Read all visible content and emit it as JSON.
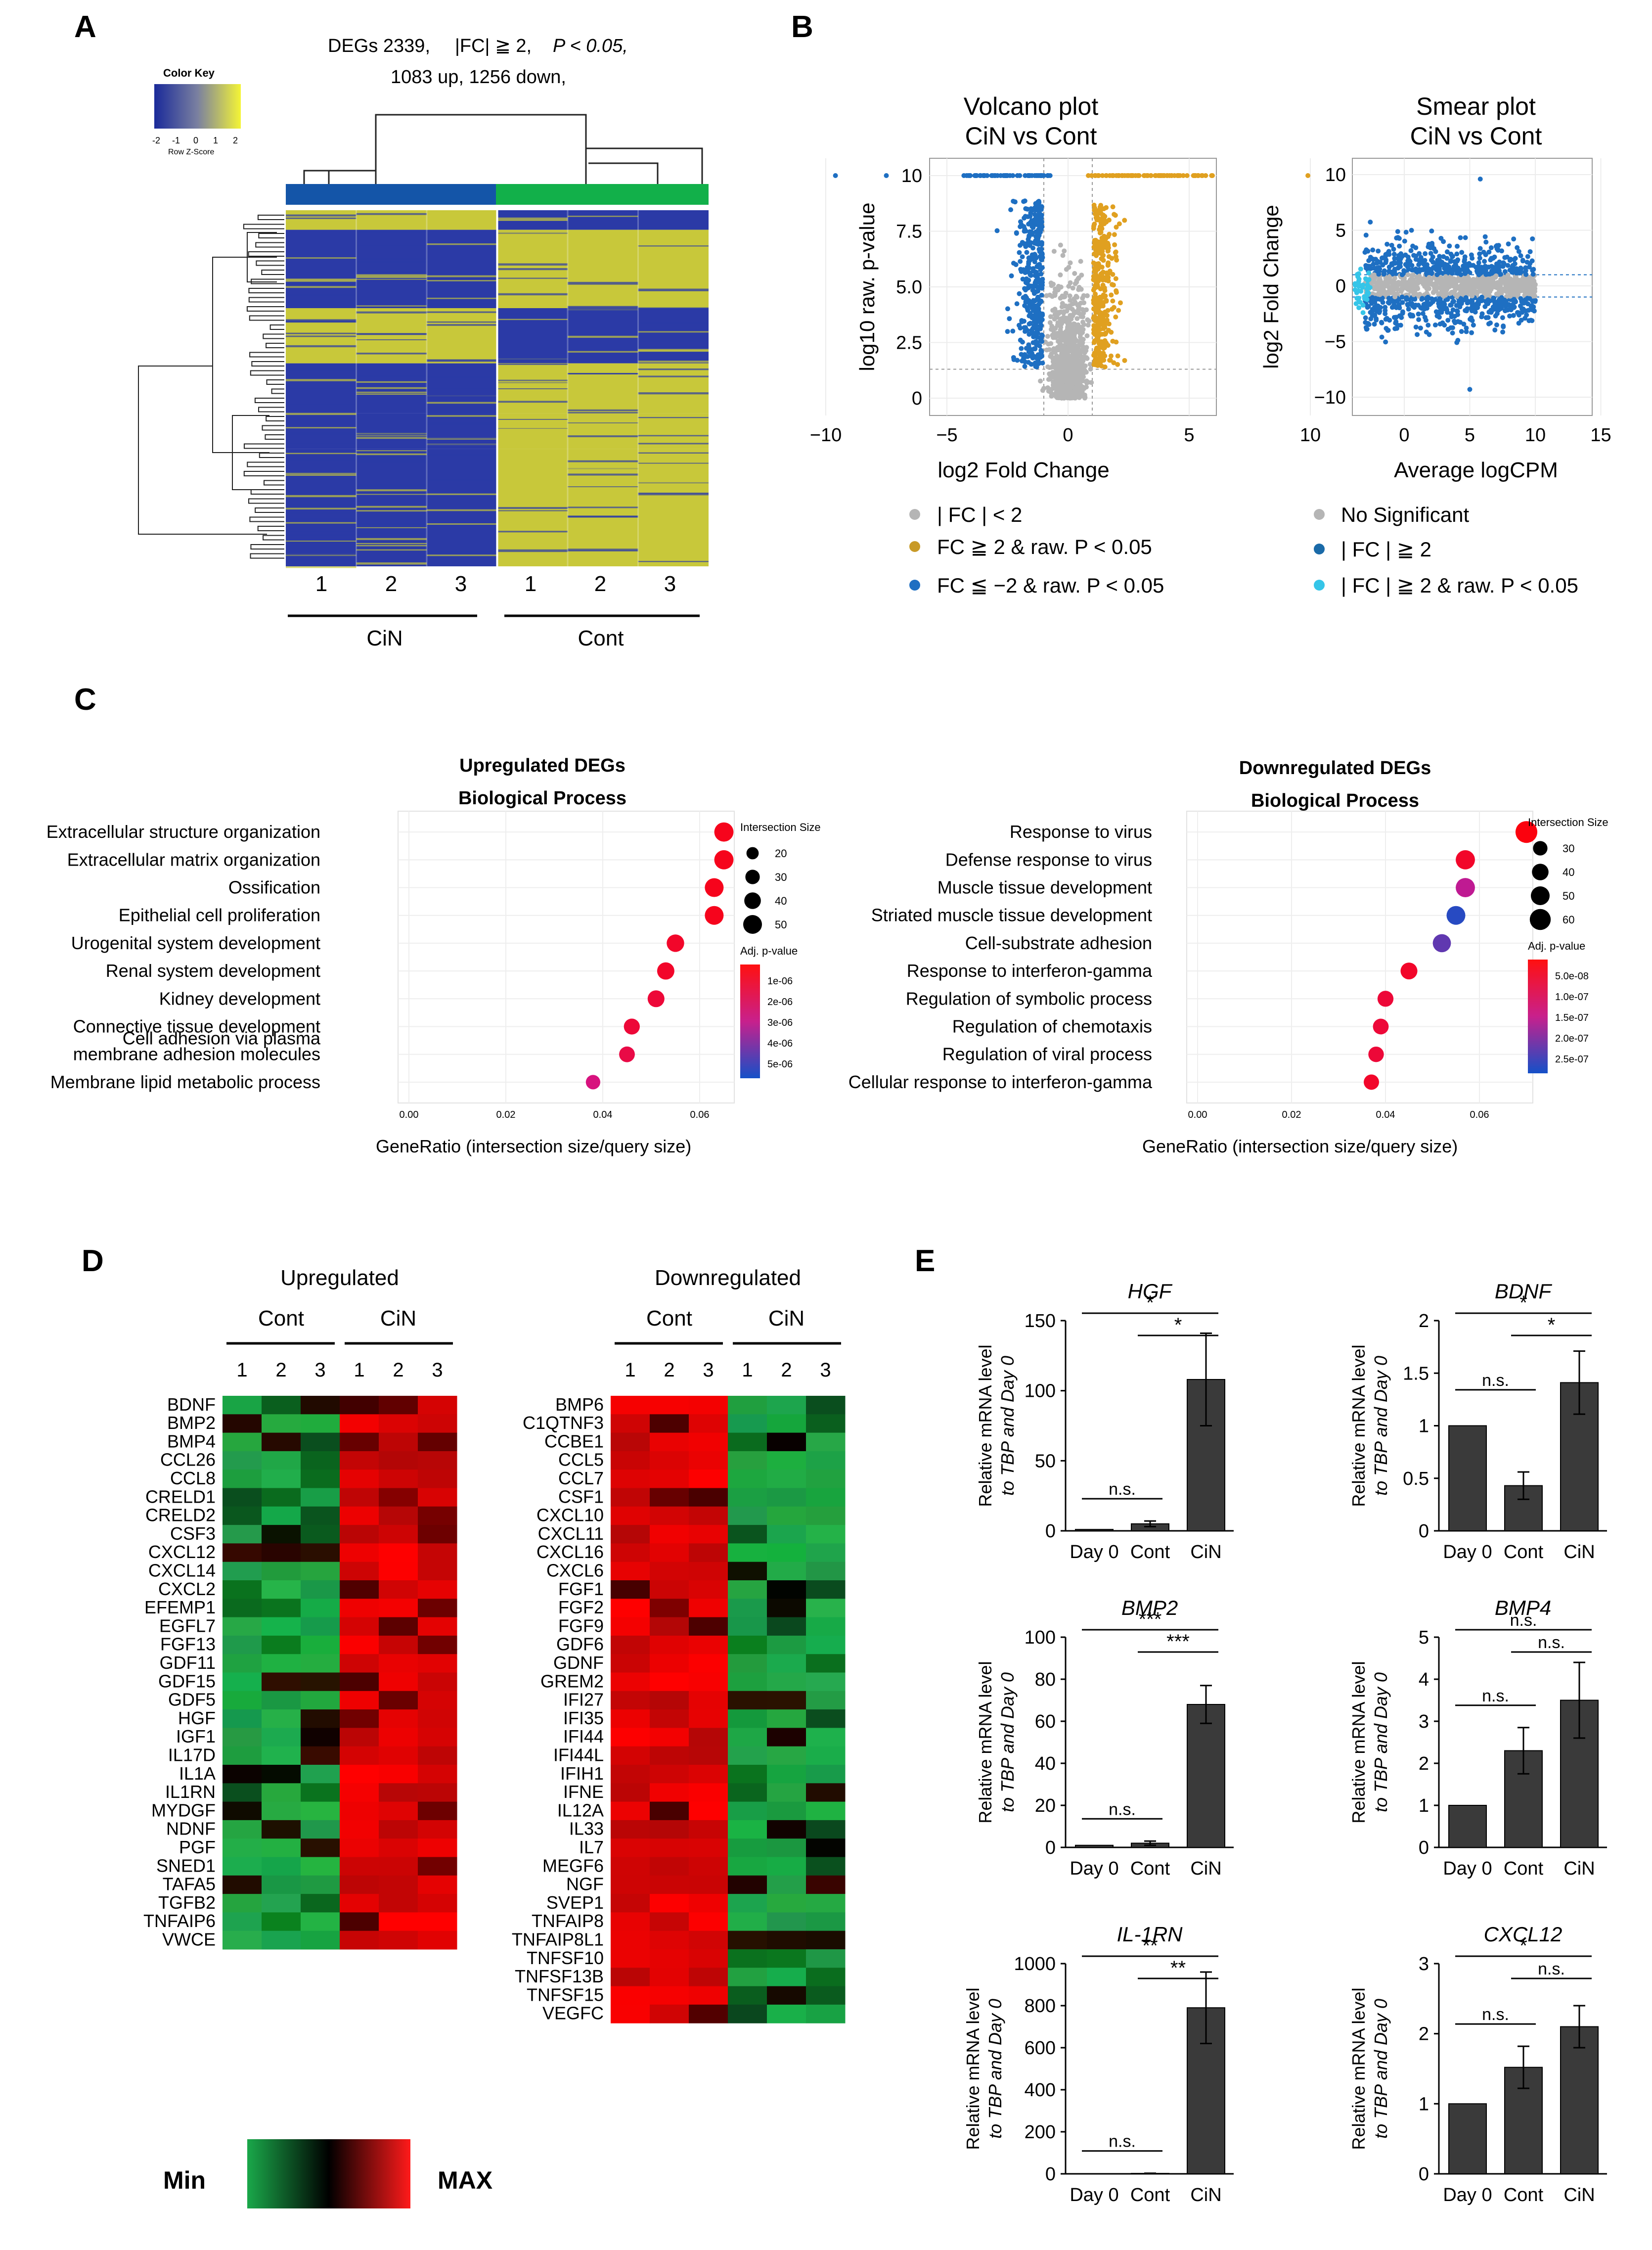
{
  "colors": {
    "heat_yellow": "#c8c83a",
    "heat_blue": "#2b3aa6",
    "bar_cin": "#1455a8",
    "bar_cont": "#12b04a",
    "volcano_gray": "#b5b5b5",
    "volcano_up": "#e0a020",
    "volcano_down": "#1e6fc2",
    "smear_sig": "#1e6fc2",
    "smear_sig2": "#35c5e8",
    "exp_red": "#ff1a1a",
    "exp_green": "#1aa84a",
    "exp_black": "#000000",
    "bar_gray": "#3a3a3a"
  },
  "panelA": {
    "label": "A",
    "header_line1": "DEGs 2339,",
    "header_fc": "|FC| ≧ 2,",
    "header_p": "P < 0.05,",
    "header_line2": "1083 up, 1256 down,",
    "color_key_title": "Color Key",
    "color_key_ticks": [
      "-2",
      "-1",
      "0",
      "1",
      "2"
    ],
    "color_key_label": "Row Z-Score",
    "columns": [
      "1",
      "2",
      "3",
      "1",
      "2",
      "3"
    ],
    "groups": [
      "CiN",
      "Cont"
    ],
    "row_blocks": [
      {
        "frac": 0.055,
        "left": "yellow"
      },
      {
        "frac": 0.22,
        "left": "blue"
      },
      {
        "frac": 0.155,
        "left": "yellow"
      },
      {
        "frac": 0.14,
        "left": "blue"
      },
      {
        "frac": 0.1,
        "left": "blue"
      },
      {
        "frac": 0.33,
        "left": "blue"
      }
    ]
  },
  "panelB": {
    "label": "B",
    "volcano_title1": "Volcano plot",
    "volcano_title2": "CiN vs Cont",
    "volcano_ylabel": "log10 raw. p-value",
    "volcano_xlabel": "log2 Fold Change",
    "volcano_xticks": [
      "−10",
      "−5",
      "0",
      "5",
      "10"
    ],
    "volcano_yticks": [
      "0",
      "2.5",
      "5.0",
      "7.5",
      "10"
    ],
    "volcano_legend": [
      "| FC | < 2",
      "FC ≧ 2 & raw. P < 0.05",
      "FC ≦ −2 & raw. P < 0.05"
    ],
    "smear_title1": "Smear plot",
    "smear_title2": "CiN vs Cont",
    "smear_ylabel": "log2 Fold Change",
    "smear_xlabel": "Average logCPM",
    "smear_xticks": [
      "0",
      "5",
      "10",
      "15"
    ],
    "smear_yticks": [
      "10",
      "5",
      "0",
      "−5",
      "−10"
    ],
    "smear_legend": [
      "No Significant",
      "| FC | ≧ 2",
      "| FC | ≧ 2 & raw. P < 0.05"
    ]
  },
  "panelC": {
    "label": "C",
    "xlabel": "GeneRatio  (intersection size/query size)",
    "up": {
      "title1": "Upregulated DEGs",
      "title2": "Biological Process",
      "terms": [
        "Extracellular structure organization",
        "Extracellular matrix organization",
        "Ossification",
        "Epithelial cell proliferation",
        "Urogenital system development",
        "Renal system development",
        "Kidney development",
        "Connective tissue development",
        "Cell adhesion via plasma membrane adhesion molecules",
        "Membrane lipid metabolic process"
      ],
      "ratios": [
        0.065,
        0.065,
        0.063,
        0.063,
        0.055,
        0.053,
        0.051,
        0.046,
        0.045,
        0.038
      ],
      "sizes": [
        52,
        52,
        50,
        50,
        44,
        43,
        41,
        37,
        36,
        30
      ],
      "pvals": [
        0.1,
        0.1,
        0.1,
        0.1,
        0.15,
        0.15,
        0.2,
        0.2,
        0.25,
        0.45
      ],
      "xticks": [
        "0.00",
        "0.02",
        "0.04",
        "0.06"
      ],
      "size_legend_title": "Intersection Size",
      "size_legend": [
        "20",
        "30",
        "40",
        "50"
      ],
      "p_legend_title": "Adj. p-value",
      "p_legend": [
        "1e-06",
        "2e-06",
        "3e-06",
        "4e-06",
        "5e-06"
      ]
    },
    "down": {
      "title1": "Downregulated DEGs",
      "title2": "Biological Process",
      "terms": [
        "Response to virus",
        "Defense response to virus",
        "Muscle tissue development",
        "Striated muscle tissue development",
        "Cell-substrate adhesion",
        "Response to interferon-gamma",
        "Regulation of symbolic process",
        "Regulation of chemotaxis",
        "Regulation of viral process",
        "Cellular response to interferon-gamma"
      ],
      "ratios": [
        0.07,
        0.057,
        0.057,
        0.055,
        0.052,
        0.045,
        0.04,
        0.039,
        0.038,
        0.037
      ],
      "sizes": [
        64,
        52,
        52,
        50,
        47,
        41,
        37,
        36,
        35,
        34
      ],
      "pvals": [
        0.05,
        0.15,
        0.55,
        0.95,
        0.8,
        0.15,
        0.2,
        0.2,
        0.2,
        0.15
      ],
      "xticks": [
        "0.00",
        "0.02",
        "0.04",
        "0.06"
      ],
      "size_legend_title": "Intersection Size",
      "size_legend": [
        "30",
        "40",
        "50",
        "60"
      ],
      "p_legend_title": "Adj. p-value",
      "p_legend": [
        "5.0e-08",
        "1.0e-07",
        "1.5e-07",
        "2.0e-07",
        "2.5e-07"
      ]
    }
  },
  "panelD": {
    "label": "D",
    "up_title": "Upregulated",
    "down_title": "Downregulated",
    "cont": "Cont",
    "cin": "CiN",
    "cols": [
      "1",
      "2",
      "3",
      "1",
      "2",
      "3"
    ],
    "up_genes": [
      "BDNF",
      "BMP2",
      "BMP4",
      "CCL26",
      "CCL8",
      "CRELD1",
      "CRELD2",
      "CSF3",
      "CXCL12",
      "CXCL14",
      "CXCL2",
      "EFEMP1",
      "EGFL7",
      "FGF13",
      "GDF11",
      "GDF15",
      "GDF5",
      "HGF",
      "IGF1",
      "IL17D",
      "IL1A",
      "IL1RN",
      "MYDGF",
      "NDNF",
      "PGF",
      "SNED1",
      "TAFA5",
      "TGFB2",
      "TNFAIP6",
      "VWCE"
    ],
    "down_genes": [
      "BMP6",
      "C1QTNF3",
      "CCBE1",
      "CCL5",
      "CCL7",
      "CSF1",
      "CXCL10",
      "CXCL11",
      "CXCL16",
      "CXCL6",
      "FGF1",
      "FGF2",
      "FGF9",
      "GDF6",
      "GDNF",
      "GREM2",
      "IFI27",
      "IFI35",
      "IFI44",
      "IFI44L",
      "IFIH1",
      "IFNE",
      "IL12A",
      "IL33",
      "IL7",
      "MEGF6",
      "NGF",
      "SVEP1",
      "TNFAIP8",
      "TNFAIP8L1",
      "TNFSF10",
      "TNFSF13B",
      "TNFSF15",
      "VEGFC"
    ],
    "min_label": "Min",
    "max_label": "MAX"
  },
  "panelE": {
    "label": "E",
    "ylabel1": "Relative mRNA level",
    "ylabel2": "to TBP and Day 0",
    "categories": [
      "Day 0",
      "Cont",
      "CiN"
    ],
    "charts": [
      {
        "title": "HGF",
        "values": [
          1,
          5,
          108
        ],
        "errors": [
          0,
          2,
          33
        ],
        "ymax": 150,
        "yticks": [
          "0",
          "50",
          "100",
          "150"
        ],
        "brackets": [
          {
            "from": 1,
            "to": 2,
            "label": "*",
            "level": 1
          },
          {
            "from": 0,
            "to": 2,
            "label": "*",
            "level": 2
          },
          {
            "from": 0,
            "to": 1,
            "label": "n.s.",
            "level": 0
          }
        ]
      },
      {
        "title": "BDNF",
        "values": [
          1,
          0.43,
          1.41
        ],
        "errors": [
          0,
          0.13,
          0.3
        ],
        "ymax": 2,
        "yticks": [
          "0",
          "0.5",
          "1",
          "1.5",
          "2"
        ],
        "brackets": [
          {
            "from": 1,
            "to": 2,
            "label": "*",
            "level": 1
          },
          {
            "from": 0,
            "to": 2,
            "label": "*",
            "level": 2
          },
          {
            "from": 0,
            "to": 1,
            "label": "n.s.",
            "level": 0
          }
        ]
      },
      {
        "title": "BMP2",
        "values": [
          1,
          2,
          68
        ],
        "errors": [
          0,
          1,
          9
        ],
        "ymax": 100,
        "yticks": [
          "0",
          "20",
          "40",
          "60",
          "80",
          "100"
        ],
        "brackets": [
          {
            "from": 1,
            "to": 2,
            "label": "***",
            "level": 1
          },
          {
            "from": 0,
            "to": 2,
            "label": "***",
            "level": 2
          },
          {
            "from": 0,
            "to": 1,
            "label": "n.s.",
            "level": 0
          }
        ]
      },
      {
        "title": "BMP4",
        "values": [
          1,
          2.3,
          3.5
        ],
        "errors": [
          0,
          0.55,
          0.9
        ],
        "ymax": 5,
        "yticks": [
          "0",
          "1",
          "2",
          "3",
          "4",
          "5"
        ],
        "brackets": [
          {
            "from": 1,
            "to": 2,
            "label": "n.s.",
            "level": 1
          },
          {
            "from": 0,
            "to": 2,
            "label": "n.s.",
            "level": 2
          },
          {
            "from": 0,
            "to": 1,
            "label": "n.s.",
            "level": 0
          }
        ]
      },
      {
        "title": "IL-1RN",
        "values": [
          1,
          2,
          790
        ],
        "errors": [
          0,
          1,
          170
        ],
        "ymax": 1000,
        "yticks": [
          "0",
          "200",
          "400",
          "600",
          "800",
          "1000"
        ],
        "brackets": [
          {
            "from": 1,
            "to": 2,
            "label": "**",
            "level": 1
          },
          {
            "from": 0,
            "to": 2,
            "label": "**",
            "level": 2
          },
          {
            "from": 0,
            "to": 1,
            "label": "n.s.",
            "level": 0
          }
        ]
      },
      {
        "title": "CXCL12",
        "values": [
          1,
          1.52,
          2.1
        ],
        "errors": [
          0,
          0.3,
          0.3
        ],
        "ymax": 3,
        "yticks": [
          "0",
          "1",
          "2",
          "3"
        ],
        "brackets": [
          {
            "from": 1,
            "to": 2,
            "label": "n.s.",
            "level": 1
          },
          {
            "from": 0,
            "to": 2,
            "label": "*",
            "level": 2
          },
          {
            "from": 0,
            "to": 1,
            "label": "n.s.",
            "level": 0
          }
        ]
      }
    ]
  }
}
